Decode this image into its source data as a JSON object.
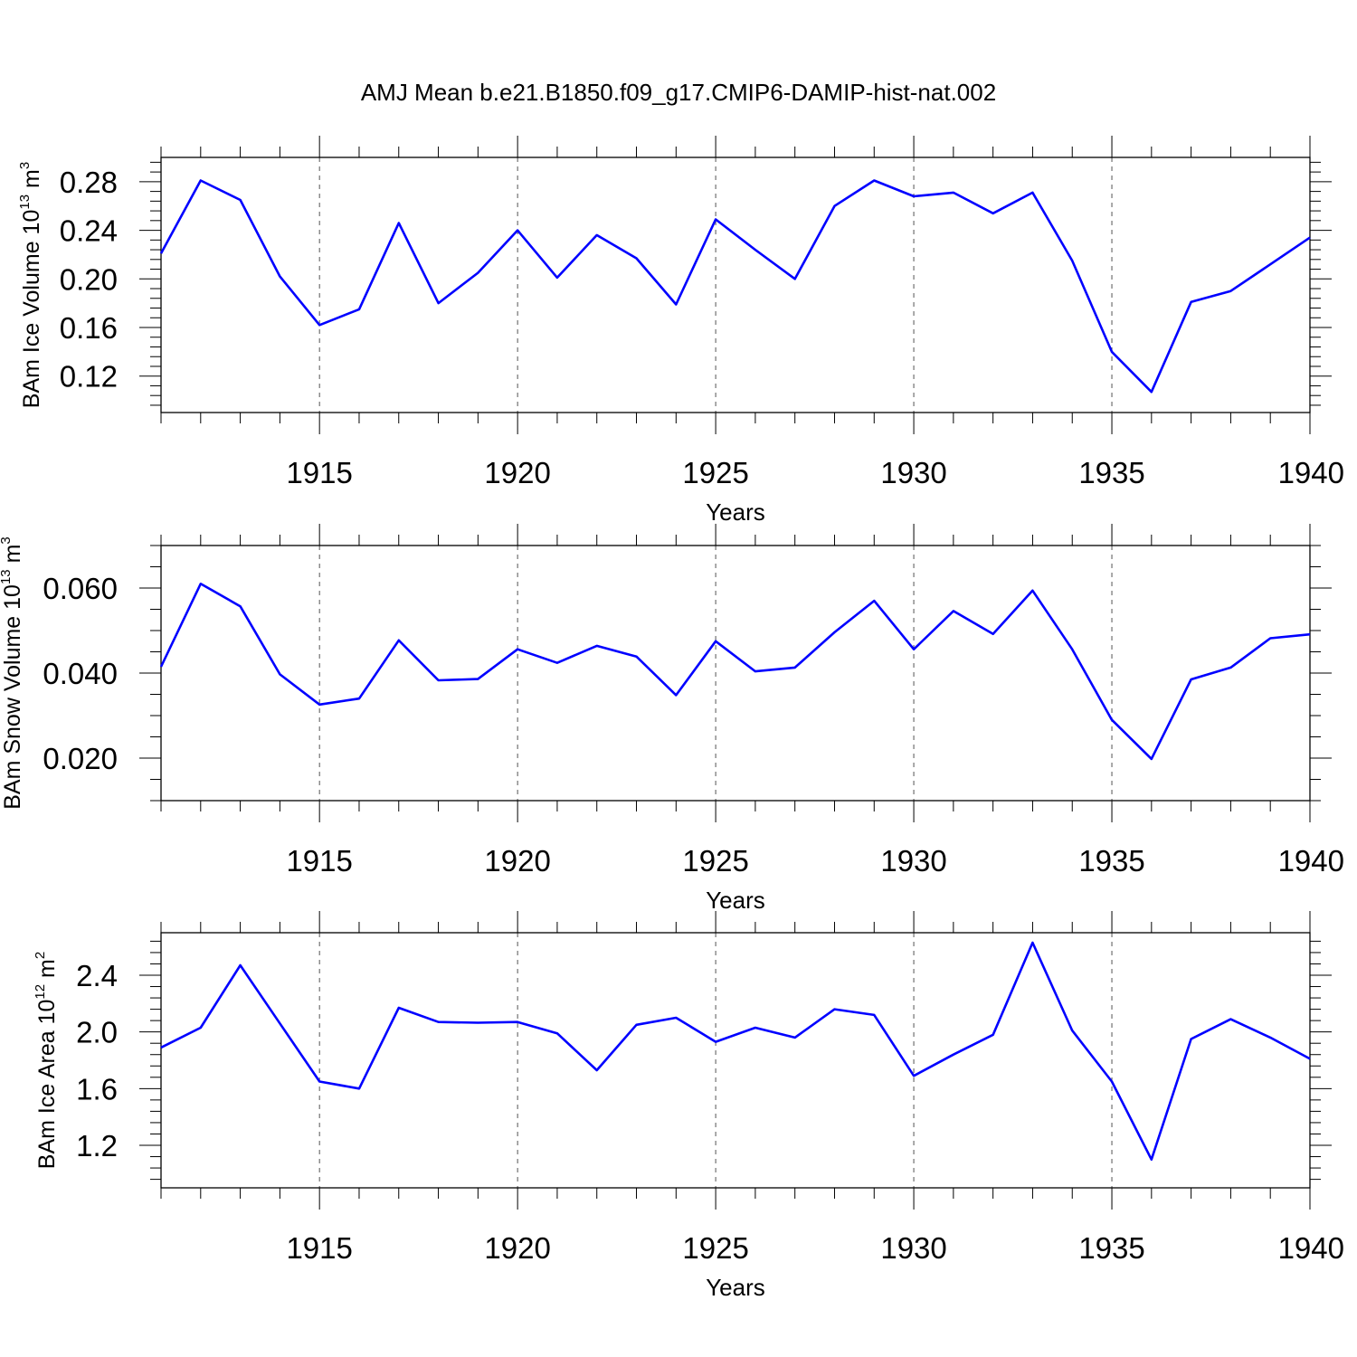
{
  "figure_title": "AMJ Mean b.e21.B1850.f09_g17.CMIP6-DAMIP-hist-nat.002",
  "colors": {
    "line": "#0000ff",
    "axis": "#000000",
    "grid": "#555555"
  },
  "chart_data": [
    {
      "type": "line",
      "xlabel": "Years",
      "ylabel_main": "BAm Ice Volume 10",
      "ylabel_sup": "13",
      "ylabel_tail": " m",
      "ylabel_sup2": "3",
      "xlim": [
        1911,
        1940
      ],
      "ylim": [
        0.09,
        0.3
      ],
      "x_ticks": [
        1915,
        1920,
        1925,
        1930,
        1935,
        1940
      ],
      "x_tick_labels": [
        "1915",
        "1920",
        "1925",
        "1930",
        "1935",
        "1940"
      ],
      "y_ticks": [
        0.12,
        0.16,
        0.2,
        0.24,
        0.28
      ],
      "y_tick_labels": [
        "0.12",
        "0.16",
        "0.20",
        "0.24",
        "0.28"
      ],
      "y_minor_step": 0.008,
      "grid": "vertical dashed at major x ticks",
      "x": [
        1911,
        1912,
        1913,
        1914,
        1915,
        1916,
        1917,
        1918,
        1919,
        1920,
        1921,
        1922,
        1923,
        1924,
        1925,
        1926,
        1927,
        1928,
        1929,
        1930,
        1931,
        1932,
        1933,
        1934,
        1935,
        1936,
        1937,
        1938,
        1939,
        1940
      ],
      "y": [
        0.221,
        0.281,
        0.265,
        0.202,
        0.162,
        0.175,
        0.246,
        0.18,
        0.205,
        0.24,
        0.201,
        0.236,
        0.217,
        0.179,
        0.249,
        0.224,
        0.2,
        0.26,
        0.281,
        0.268,
        0.271,
        0.254,
        0.271,
        0.215,
        0.14,
        0.107,
        0.181,
        0.19,
        0.212,
        0.234
      ]
    },
    {
      "type": "line",
      "xlabel": "Years",
      "ylabel_main": "BAm Snow Volume 10",
      "ylabel_sup": "13",
      "ylabel_tail": " m",
      "ylabel_sup2": "3",
      "xlim": [
        1911,
        1940
      ],
      "ylim": [
        0.01,
        0.07
      ],
      "x_ticks": [
        1915,
        1920,
        1925,
        1930,
        1935,
        1940
      ],
      "x_tick_labels": [
        "1915",
        "1920",
        "1925",
        "1930",
        "1935",
        "1940"
      ],
      "y_ticks": [
        0.02,
        0.04,
        0.06
      ],
      "y_tick_labels": [
        "0.020",
        "0.040",
        "0.060"
      ],
      "y_minor_step": 0.005,
      "grid": "vertical dashed at major x ticks",
      "x": [
        1911,
        1912,
        1913,
        1914,
        1915,
        1916,
        1917,
        1918,
        1919,
        1920,
        1921,
        1922,
        1923,
        1924,
        1925,
        1926,
        1927,
        1928,
        1929,
        1930,
        1931,
        1932,
        1933,
        1934,
        1935,
        1936,
        1937,
        1938,
        1939,
        1940
      ],
      "y": [
        0.0415,
        0.061,
        0.0557,
        0.0397,
        0.0326,
        0.034,
        0.0477,
        0.0383,
        0.0386,
        0.0456,
        0.0424,
        0.0464,
        0.0439,
        0.0348,
        0.0475,
        0.0404,
        0.0413,
        0.0496,
        0.057,
        0.0456,
        0.0546,
        0.0492,
        0.0594,
        0.0456,
        0.029,
        0.0198,
        0.0385,
        0.0413,
        0.0482,
        0.0491
      ]
    },
    {
      "type": "line",
      "xlabel": "Years",
      "ylabel_main": "BAm Ice Area 10",
      "ylabel_sup": "12",
      "ylabel_tail": " m",
      "ylabel_sup2": "2",
      "xlim": [
        1911,
        1940
      ],
      "ylim": [
        0.9,
        2.7
      ],
      "x_ticks": [
        1915,
        1920,
        1925,
        1930,
        1935,
        1940
      ],
      "x_tick_labels": [
        "1915",
        "1920",
        "1925",
        "1930",
        "1935",
        "1940"
      ],
      "y_ticks": [
        1.2,
        1.6,
        2.0,
        2.4
      ],
      "y_tick_labels": [
        "1.2",
        "1.6",
        "2.0",
        "2.4"
      ],
      "y_minor_step": 0.08,
      "grid": "vertical dashed at major x ticks",
      "x": [
        1911,
        1912,
        1913,
        1914,
        1915,
        1916,
        1917,
        1918,
        1919,
        1920,
        1921,
        1922,
        1923,
        1924,
        1925,
        1926,
        1927,
        1928,
        1929,
        1930,
        1931,
        1932,
        1933,
        1934,
        1935,
        1936,
        1937,
        1938,
        1939,
        1940
      ],
      "y": [
        1.89,
        2.03,
        2.47,
        2.06,
        1.65,
        1.6,
        2.17,
        2.07,
        2.065,
        2.07,
        1.99,
        1.73,
        2.05,
        2.1,
        1.93,
        2.03,
        1.96,
        2.16,
        2.12,
        1.69,
        1.84,
        1.98,
        2.63,
        2.01,
        1.65,
        1.1,
        1.95,
        2.09,
        1.96,
        1.81
      ]
    }
  ]
}
